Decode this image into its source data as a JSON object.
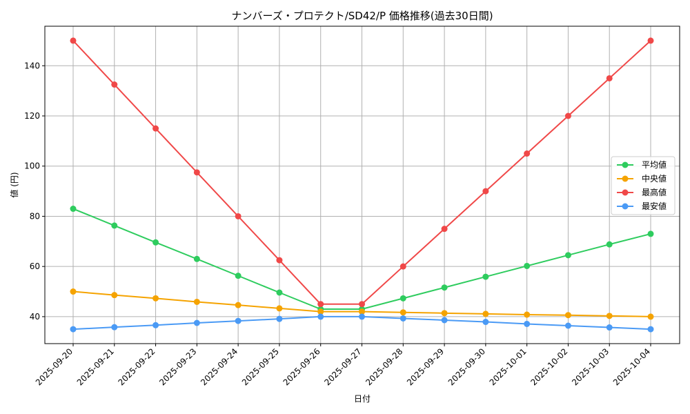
{
  "chart_data": {
    "type": "line",
    "title": "ナンバーズ・プロテクト/SD42/P 価格推移(過去30日間)",
    "xlabel": "日付",
    "ylabel": "値 (円)",
    "ylim": [
      29.25,
      155.75
    ],
    "yticks": [
      40,
      60,
      80,
      100,
      120,
      140
    ],
    "grid": true,
    "legend_position": "center-right",
    "categories": [
      "2025-09-20",
      "2025-09-21",
      "2025-09-22",
      "2025-09-23",
      "2025-09-24",
      "2025-09-25",
      "2025-09-26",
      "2025-09-27",
      "2025-09-28",
      "2025-09-29",
      "2025-09-30",
      "2025-10-01",
      "2025-10-02",
      "2025-10-03",
      "2025-10-04"
    ],
    "series": [
      {
        "name": "平均値",
        "color": "#2ecc5e",
        "values": [
          83,
          76.3,
          69.6,
          63,
          56.3,
          49.6,
          43,
          43,
          47.3,
          51.6,
          55.9,
          60.2,
          64.5,
          68.8,
          73
        ]
      },
      {
        "name": "中央値",
        "color": "#f5a300",
        "values": [
          50,
          48.6,
          47.3,
          45.9,
          44.6,
          43.3,
          42,
          42,
          41.7,
          41.4,
          41.1,
          40.8,
          40.6,
          40.3,
          40
        ]
      },
      {
        "name": "最高値",
        "color": "#f04848",
        "values": [
          150,
          132.5,
          115,
          97.5,
          80,
          62.5,
          45,
          45,
          60,
          75,
          90,
          105,
          120,
          135,
          150
        ]
      },
      {
        "name": "最安値",
        "color": "#4a9af5",
        "values": [
          35,
          35.8,
          36.6,
          37.5,
          38.3,
          39.1,
          40,
          40,
          39.3,
          38.6,
          37.9,
          37.1,
          36.4,
          35.7,
          35
        ]
      }
    ]
  }
}
